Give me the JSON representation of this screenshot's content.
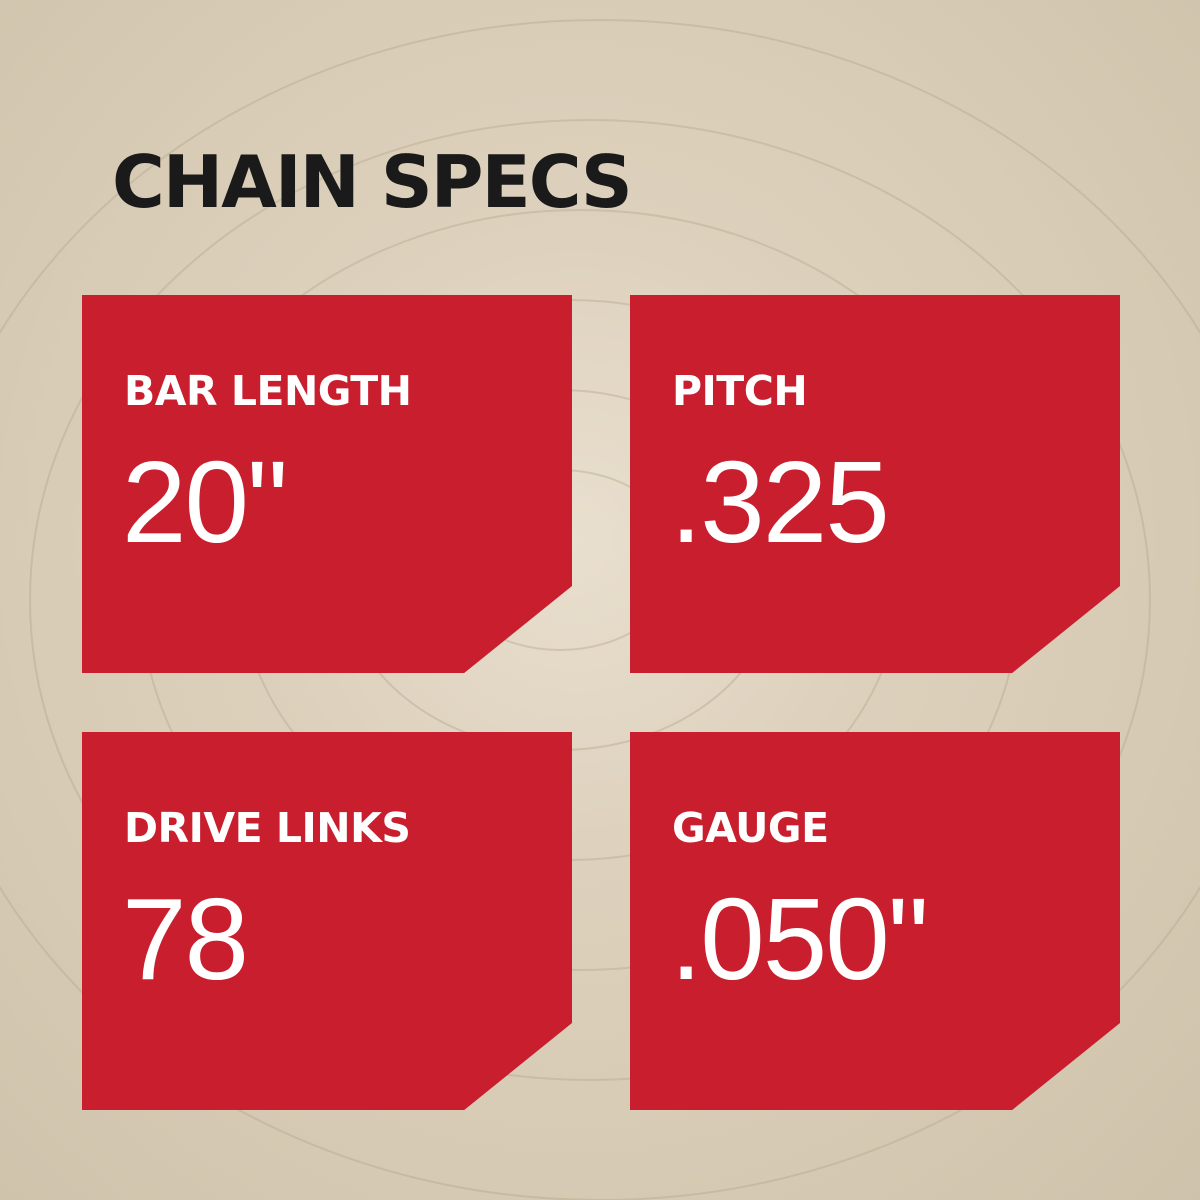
{
  "title": "CHAIN SPECS",
  "accent_color": "#c81e2d",
  "specs": [
    {
      "label": "BAR LENGTH",
      "value": "20\""
    },
    {
      "label": "PITCH",
      "value": ".325"
    },
    {
      "label": "DRIVE LINKS",
      "value": "78"
    },
    {
      "label": "GAUGE",
      "value": ".050\""
    }
  ]
}
